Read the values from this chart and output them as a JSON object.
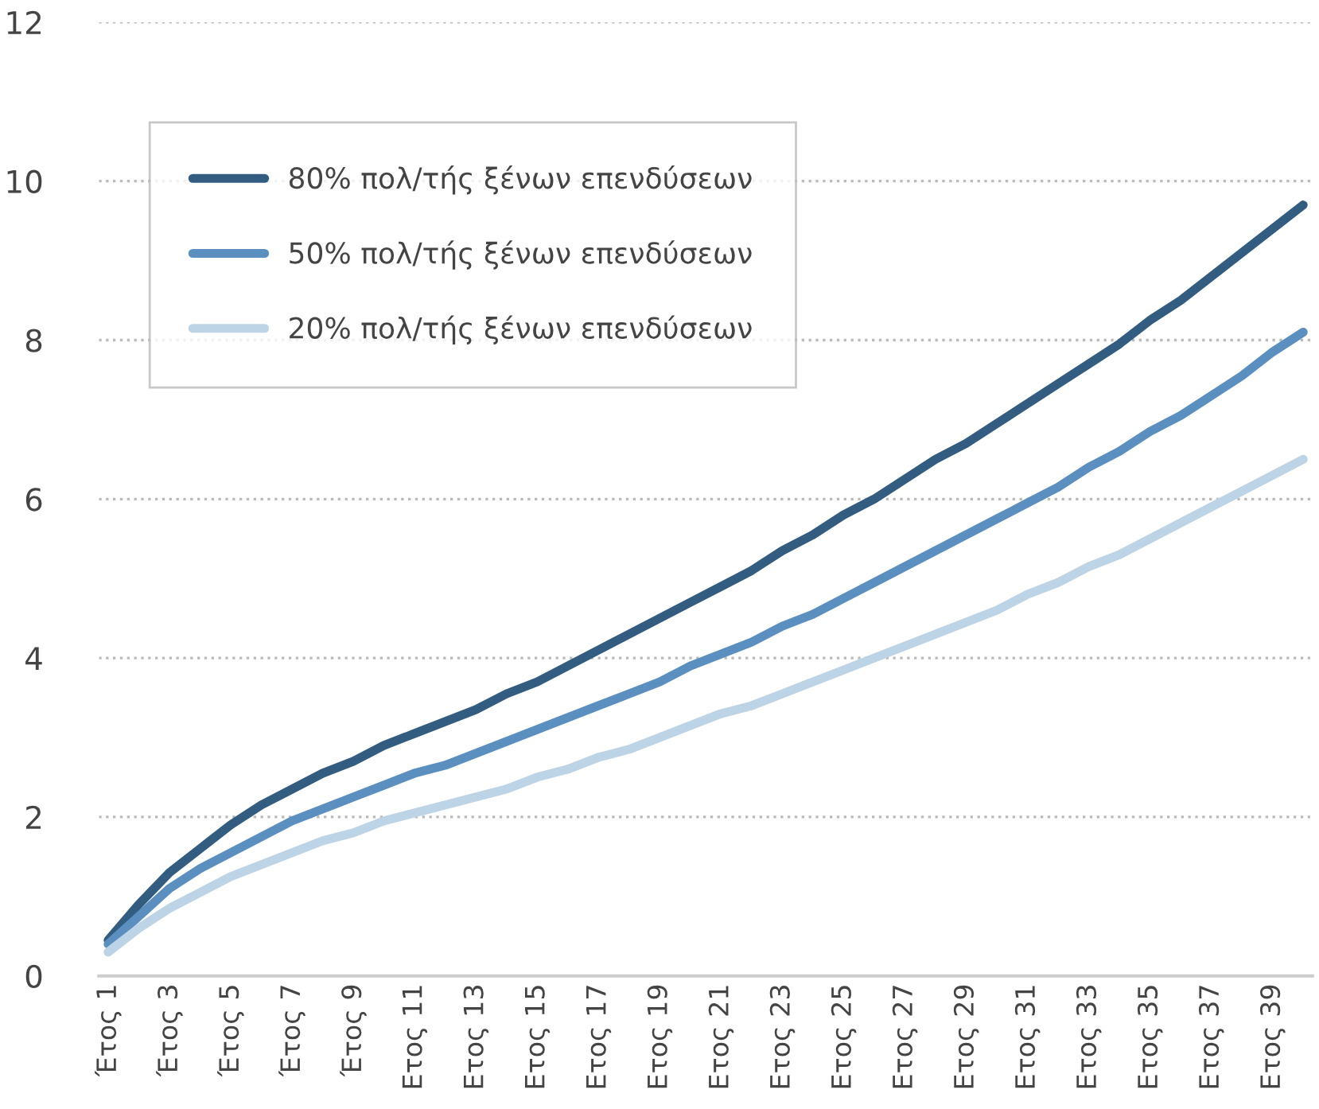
{
  "chart_data": {
    "type": "line",
    "categories": [
      "Έτος 1",
      null,
      "Έτος 3",
      null,
      "Έτος 5",
      null,
      "Έτος 7",
      null,
      "Έτος 9",
      null,
      "Ετος 11",
      null,
      "Ετος 13",
      null,
      "Ετος 15",
      null,
      "Ετος 17",
      null,
      "Ετος 19",
      null,
      "Ετος 21",
      null,
      "Ετος 23",
      null,
      "Ετος 25",
      null,
      "Ετος 27",
      null,
      "Ετος 29",
      null,
      "Ετος 31",
      null,
      "Ετος 33",
      null,
      "Ετος 35",
      null,
      "Ετος 37",
      null,
      "Ετος 39",
      null
    ],
    "series": [
      {
        "name": "80% πολ/τής ξένων επενδύσεων",
        "color": "#335c81",
        "values": [
          0.45,
          0.9,
          1.3,
          1.6,
          1.9,
          2.15,
          2.35,
          2.55,
          2.7,
          2.9,
          3.05,
          3.2,
          3.35,
          3.55,
          3.7,
          3.9,
          4.1,
          4.3,
          4.5,
          4.7,
          4.9,
          5.1,
          5.35,
          5.55,
          5.8,
          6.0,
          6.25,
          6.5,
          6.7,
          6.95,
          7.2,
          7.45,
          7.7,
          7.95,
          8.25,
          8.5,
          8.8,
          9.1,
          9.4,
          9.7
        ]
      },
      {
        "name": "50% πολ/τής ξένων επενδύσεων",
        "color": "#5a8fc0",
        "values": [
          0.4,
          0.75,
          1.1,
          1.35,
          1.55,
          1.75,
          1.95,
          2.1,
          2.25,
          2.4,
          2.55,
          2.65,
          2.8,
          2.95,
          3.1,
          3.25,
          3.4,
          3.55,
          3.7,
          3.9,
          4.05,
          4.2,
          4.4,
          4.55,
          4.75,
          4.95,
          5.15,
          5.35,
          5.55,
          5.75,
          5.95,
          6.15,
          6.4,
          6.6,
          6.85,
          7.05,
          7.3,
          7.55,
          7.85,
          8.1
        ]
      },
      {
        "name": "20% πολ/τής ξένων επενδύσεων",
        "color": "#bdd3e6",
        "values": [
          0.3,
          0.6,
          0.85,
          1.05,
          1.25,
          1.4,
          1.55,
          1.7,
          1.8,
          1.95,
          2.05,
          2.15,
          2.25,
          2.35,
          2.5,
          2.6,
          2.75,
          2.85,
          3.0,
          3.15,
          3.3,
          3.4,
          3.55,
          3.7,
          3.85,
          4.0,
          4.15,
          4.3,
          4.45,
          4.6,
          4.8,
          4.95,
          5.15,
          5.3,
          5.5,
          5.7,
          5.9,
          6.1,
          6.3,
          6.5
        ]
      }
    ],
    "ylim": [
      0,
      12
    ],
    "yticks": [
      0,
      2,
      4,
      6,
      8,
      10,
      12
    ],
    "grid": "y",
    "legend": "top left",
    "line_style": "solid",
    "marker": "none"
  }
}
